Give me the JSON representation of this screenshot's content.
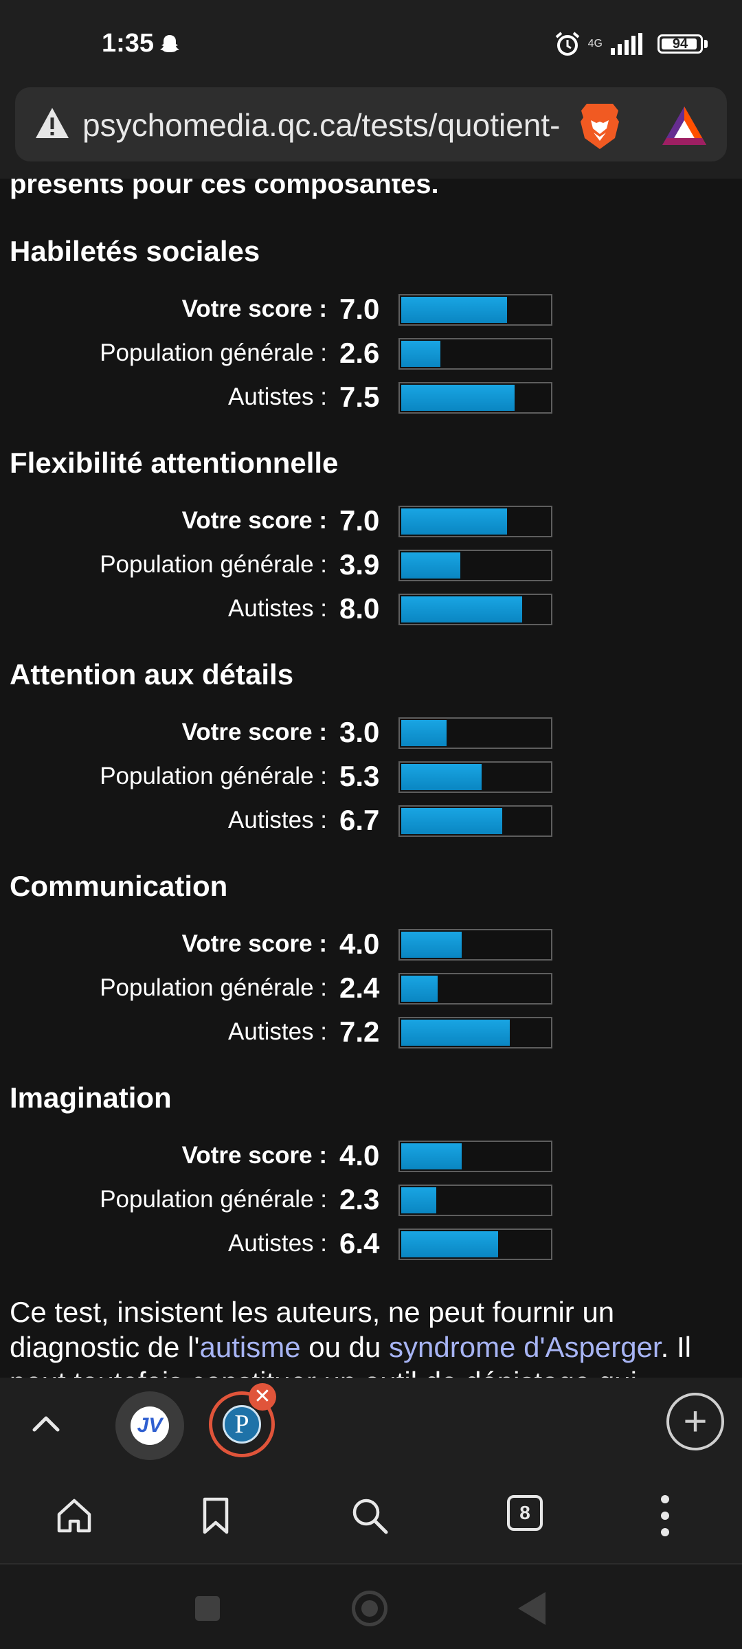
{
  "status_bar": {
    "time": "1:35",
    "network": "4G",
    "battery": "94"
  },
  "address_bar": {
    "url": "psychomedia.qc.ca/tests/quotient-"
  },
  "intro_text": "présents pour ces composantes.",
  "row_labels": {
    "yours": "Votre score :",
    "population": "Population générale :",
    "autistic": "Autistes :"
  },
  "sections": [
    {
      "title": "Habiletés sociales",
      "scores": {
        "yours": "7.0",
        "population": "2.6",
        "autistic": "7.5"
      }
    },
    {
      "title": "Flexibilité attentionnelle",
      "scores": {
        "yours": "7.0",
        "population": "3.9",
        "autistic": "8.0"
      }
    },
    {
      "title": "Attention aux détails",
      "scores": {
        "yours": "3.0",
        "population": "5.3",
        "autistic": "6.7"
      }
    },
    {
      "title": "Communication",
      "scores": {
        "yours": "4.0",
        "population": "2.4",
        "autistic": "7.2"
      }
    },
    {
      "title": "Imagination",
      "scores": {
        "yours": "4.0",
        "population": "2.3",
        "autistic": "6.4"
      }
    }
  ],
  "bar_max": 10,
  "bar_color": "#0f96d4",
  "footer": {
    "line1": "Ce test, insistent les auteurs, ne peut fournir un",
    "line2_a": "diagnostic de l'",
    "link_autism": "autisme",
    "line2_b": " ou du ",
    "link_asperger": "syndrome d'Asperger",
    "line2_c": ". Il",
    "line3": "peut toutefois constituer un outil de dépistage qui"
  },
  "tabstrip": {
    "tab1_label": "JV",
    "tab2_label": "P",
    "close_glyph": "✕",
    "new_tab_glyph": "+"
  },
  "toolbar": {
    "tabs_count": "8"
  },
  "icons": [
    "ghost-icon",
    "alarm-icon",
    "signal-icon",
    "battery-icon",
    "warning-icon",
    "brave-lion-icon",
    "bat-triangle-icon",
    "chevron-up-icon",
    "home-icon",
    "bookmark-icon",
    "search-icon",
    "tabs-count-icon",
    "menu-icon"
  ]
}
